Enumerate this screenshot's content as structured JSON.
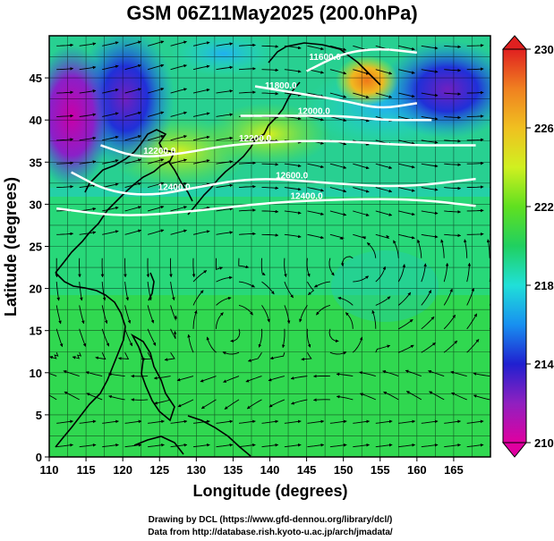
{
  "title": "GSM 06Z11May2025 (200.0hPa)",
  "credits": {
    "line1": "Drawing by DCL (https://www.gfd-dennou.org/library/dcl/)",
    "line2": "Data from http://database.rish.kyoto-u.ac.jp/arch/jmadata/"
  },
  "chart_data": {
    "type": "heatmap",
    "xlabel": "Longitude (degrees)",
    "ylabel": "Latitude  (degrees)",
    "xlim": [
      110,
      170
    ],
    "ylim": [
      0,
      50
    ],
    "x_ticks": [
      "110",
      "115",
      "120",
      "125",
      "130",
      "135",
      "140",
      "145",
      "150",
      "155",
      "160",
      "165"
    ],
    "y_ticks": [
      "0",
      "5",
      "10",
      "15",
      "20",
      "25",
      "30",
      "35",
      "40",
      "45"
    ],
    "colorbar": {
      "range": [
        210,
        230
      ],
      "ticks": [
        "210",
        "214",
        "218",
        "222",
        "226",
        "230"
      ],
      "colormap": [
        "#e000a0",
        "#9020c0",
        "#2020d0",
        "#1890f0",
        "#20e0d8",
        "#20d060",
        "#60e020",
        "#d0f020",
        "#f0c020",
        "#f08020",
        "#e02020"
      ]
    },
    "contours": [
      {
        "label": "11600.0",
        "points": [
          [
            145,
            45.8
          ],
          [
            150,
            48
          ],
          [
            155,
            48.5
          ],
          [
            160,
            48
          ]
        ]
      },
      {
        "label": "11800.0",
        "points": [
          [
            138,
            44
          ],
          [
            145,
            43
          ],
          [
            150,
            42.3
          ],
          [
            155,
            41.3
          ],
          [
            160,
            42
          ]
        ]
      },
      {
        "label": "12000.0",
        "points": [
          [
            136,
            40.5
          ],
          [
            142,
            40.5
          ],
          [
            150,
            40.5
          ],
          [
            155,
            40
          ],
          [
            162,
            40
          ]
        ]
      },
      {
        "label": "12200.0",
        "points": [
          [
            117,
            37
          ],
          [
            122,
            35.5
          ],
          [
            128,
            36
          ],
          [
            134,
            37
          ],
          [
            142,
            37.5
          ],
          [
            150,
            37.5
          ],
          [
            158,
            37
          ],
          [
            168,
            37
          ]
        ]
      },
      {
        "label": "12400.0",
        "points": [
          [
            113,
            33.8
          ],
          [
            118,
            31.5
          ],
          [
            124,
            31
          ],
          [
            130,
            32
          ],
          [
            138,
            33.2
          ],
          [
            148,
            32.5
          ],
          [
            158,
            32
          ],
          [
            168,
            33
          ]
        ]
      },
      {
        "label": "12400.0",
        "points": [
          [
            111,
            29.5
          ],
          [
            120,
            28.5
          ],
          [
            130,
            29.2
          ],
          [
            140,
            30.2
          ],
          [
            150,
            30.6
          ],
          [
            160,
            30.6
          ],
          [
            168,
            29.8
          ]
        ]
      }
    ],
    "contour_label_text": [
      "11600.0",
      "11800.0",
      "12000.0",
      "12200.0",
      "12400.0",
      "12400.0",
      "12600.0",
      "12200.0"
    ]
  }
}
